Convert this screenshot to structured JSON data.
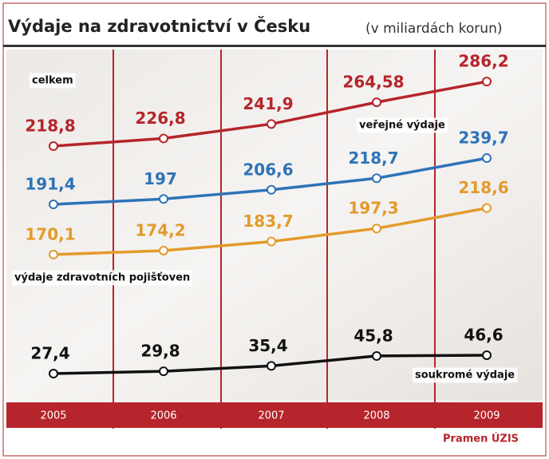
{
  "chart_data": {
    "type": "line",
    "title": "Výdaje na zdravotnictví v Česku",
    "subtitle": "(v miliardách korun)",
    "source": "Pramen ÚZIS",
    "categories": [
      "2005",
      "2006",
      "2007",
      "2008",
      "2009"
    ],
    "series": [
      {
        "name": "celkem",
        "color": "#b5252b",
        "values": [
          218.8,
          226.8,
          241.9,
          264.58,
          286.2
        ],
        "value_labels": [
          "218,8",
          "226,8",
          "241,9",
          "264,58",
          "286,2"
        ]
      },
      {
        "name": "veřejné výdaje",
        "color": "#2e73b8",
        "values": [
          191.4,
          197,
          206.6,
          218.7,
          239.7
        ],
        "value_labels": [
          "191,4",
          "197",
          "206,6",
          "218,7",
          "239,7"
        ]
      },
      {
        "name": "výdaje zdravotních pojišťoven",
        "color": "#e39a2a",
        "values": [
          170.1,
          174.2,
          183.7,
          197.3,
          218.6
        ],
        "value_labels": [
          "170,1",
          "174,2",
          "183,7",
          "197,3",
          "218,6"
        ]
      },
      {
        "name": "soukromé výdaje",
        "color": "#111111",
        "values": [
          27.4,
          29.8,
          35.4,
          45.8,
          46.6
        ],
        "value_labels": [
          "27,4",
          "29,8",
          "35,4",
          "45,8",
          "46,6"
        ]
      }
    ]
  }
}
